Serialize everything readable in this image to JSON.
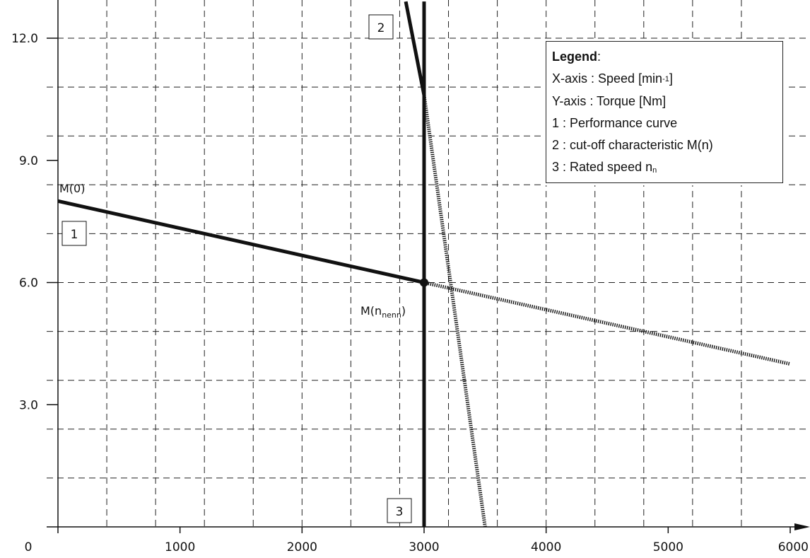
{
  "chart_data": {
    "type": "line",
    "title": "",
    "xlabel": "",
    "ylabel": "",
    "xlim": [
      0,
      6000
    ],
    "ylim": [
      0,
      12.0
    ],
    "x_ticks": [
      0,
      1000,
      2000,
      3000,
      4000,
      5000,
      6000
    ],
    "x_tick_labels": [
      "0",
      "1000",
      "2000",
      "3000",
      "4000",
      "5000",
      "6000"
    ],
    "y_ticks": [
      3.0,
      6.0,
      9.0,
      12.0
    ],
    "y_tick_labels": [
      "3.0",
      "6.0",
      "9.0",
      "12.0"
    ],
    "grid": true,
    "legend_position": "top-right",
    "series": [
      {
        "key": "performance-curve",
        "box": "1",
        "style": "solid-thick",
        "points": [
          [
            0,
            8.0
          ],
          [
            3000,
            6.0
          ]
        ]
      },
      {
        "key": "performance-curve-extension",
        "style": "dotted",
        "points": [
          [
            3000,
            6.0
          ],
          [
            6000,
            4.0
          ]
        ]
      },
      {
        "key": "cutoff-characteristic",
        "box": "2",
        "style": "solid-thick",
        "points": [
          [
            2850,
            12.9
          ],
          [
            3000,
            10.6
          ]
        ]
      },
      {
        "key": "cutoff-characteristic-extension",
        "style": "dotted",
        "points": [
          [
            3000,
            10.6
          ],
          [
            3500,
            0
          ]
        ]
      },
      {
        "key": "rated-speed",
        "box": "3",
        "style": "solid-thick",
        "points": [
          [
            3000,
            0
          ],
          [
            3000,
            12.9
          ]
        ]
      }
    ],
    "annotations": {
      "m0": "M(0)",
      "mn_main": "M(n",
      "mn_sub": "nenn",
      "mn_close": ")"
    },
    "legend": {
      "title": "Legend",
      "title_suffix": ":",
      "x_axis": {
        "text": "X-axis : Speed [min",
        "sup": "-1",
        "close": "]"
      },
      "y_axis": "Y-axis : Torque [Nm]",
      "item1": "1 : Performance curve",
      "item2": "2 : cut-off characteristic M(n)",
      "item3": {
        "text": "3 : Rated speed n",
        "sub": "n"
      }
    },
    "colors": {
      "ink": "#111111",
      "grid": "#222222",
      "background": "#ffffff"
    }
  }
}
